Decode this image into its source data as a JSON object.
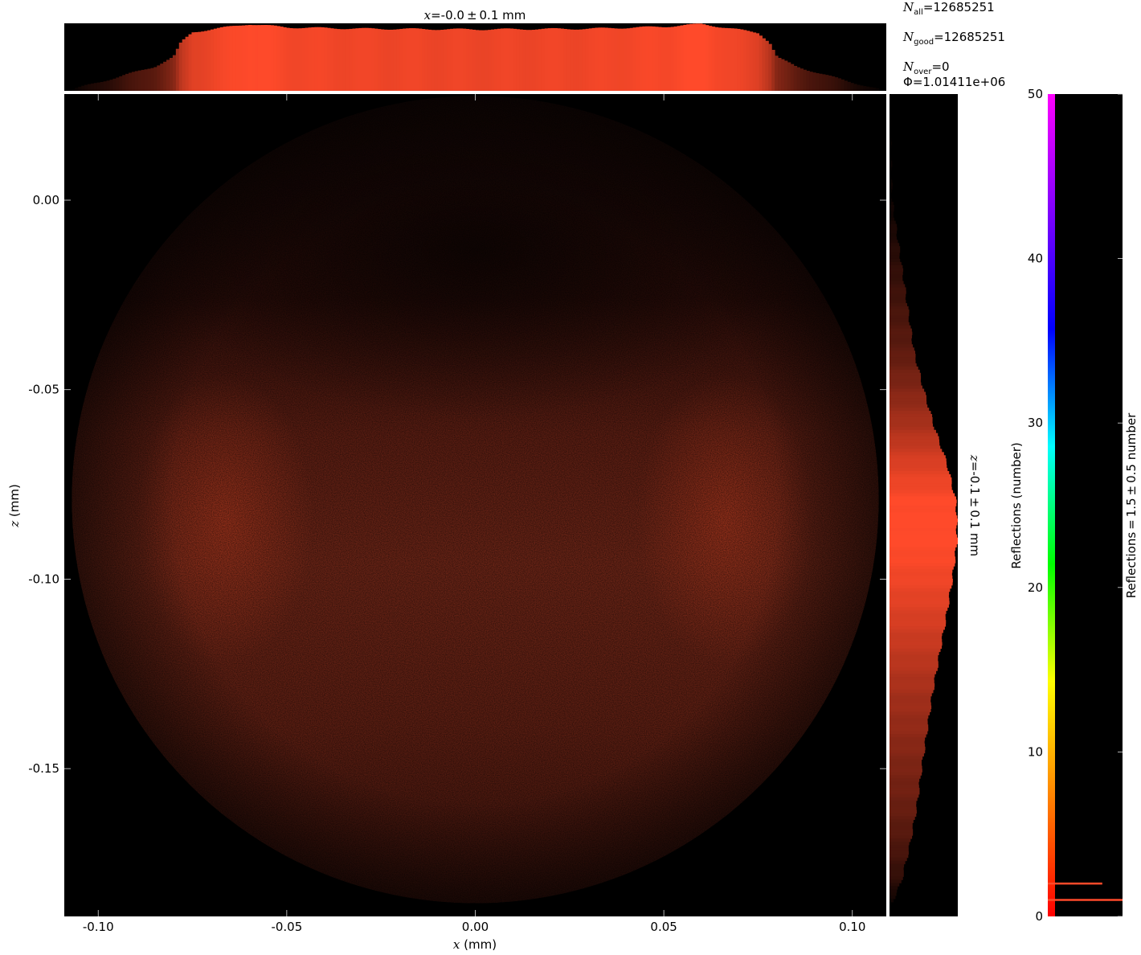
{
  "chart_data": {
    "type": "heatmap",
    "title_top": {
      "var": "x",
      "text": "=-0.0 ± 0.1 mm"
    },
    "side_label": {
      "var": "z",
      "text": "=-0.1 ± 0.1 mm"
    },
    "xlabel": {
      "var": "x",
      "text": " (mm)"
    },
    "ylabel": {
      "var": "z",
      "text": " (mm)"
    },
    "x_range": [
      -0.109,
      0.109
    ],
    "z_range": [
      -0.189,
      0.028
    ],
    "x_ticks": [
      -0.1,
      -0.05,
      0.0,
      0.05,
      0.1
    ],
    "x_tick_labels": [
      "-0.10",
      "-0.05",
      "0.00",
      "0.05",
      "0.10"
    ],
    "z_ticks": [
      0.0,
      -0.05,
      -0.1,
      -0.15
    ],
    "z_tick_labels": [
      "0.00",
      "-0.05",
      "-0.10",
      "-0.15"
    ],
    "beam": {
      "shape": "circle",
      "center_x": 0.0,
      "center_z": -0.079,
      "radius": 0.107
    },
    "stats": {
      "n_all": {
        "sym": "N",
        "sub": "all",
        "value": "=12685251"
      },
      "n_good": {
        "sym": "N",
        "sub": "good",
        "value": "=12685251"
      },
      "n_over": {
        "sym": "N",
        "sub": "over",
        "value": "=0"
      },
      "phi": {
        "sym": "Φ",
        "value": "=1.01411e+06"
      }
    },
    "x_profile": {
      "x": [
        -0.107,
        -0.095,
        -0.085,
        -0.08,
        -0.078,
        -0.075,
        -0.06,
        -0.05,
        -0.03,
        0.0,
        0.03,
        0.05,
        0.06,
        0.075,
        0.078,
        0.08,
        0.085,
        0.095,
        0.107
      ],
      "rel": [
        0.02,
        0.2,
        0.36,
        0.5,
        0.72,
        0.87,
        0.99,
        0.94,
        0.92,
        0.91,
        0.92,
        0.95,
        0.99,
        0.86,
        0.72,
        0.5,
        0.36,
        0.2,
        0.02
      ]
    },
    "z_profile": {
      "z": [
        0.028,
        0.0,
        -0.02,
        -0.04,
        -0.05,
        -0.06,
        -0.07,
        -0.08,
        -0.09,
        -0.1,
        -0.11,
        -0.12,
        -0.13,
        -0.14,
        -0.15,
        -0.16,
        -0.17,
        -0.18,
        -0.186
      ],
      "rel": [
        0.0,
        0.04,
        0.2,
        0.36,
        0.5,
        0.66,
        0.85,
        0.98,
        0.99,
        0.92,
        0.83,
        0.73,
        0.63,
        0.55,
        0.47,
        0.4,
        0.3,
        0.17,
        0.02
      ]
    },
    "colorbar": {
      "label": "Reflections (number)",
      "side_label": "Reflections = 1.5 ± 0.5 number",
      "range": [
        0,
        50
      ],
      "ticks": [
        0,
        10,
        20,
        30,
        40,
        50
      ],
      "tick_labels": [
        "0",
        "10",
        "20",
        "30",
        "40",
        "50"
      ],
      "colormap": [
        "#ff0000",
        "#ff8000",
        "#ffff00",
        "#00ff00",
        "#00ffff",
        "#0000ff",
        "#8000ff",
        "#ff00ff"
      ],
      "histogram": [
        {
          "value": 1,
          "rel": 1.0
        },
        {
          "value": 2,
          "rel": 0.7
        }
      ]
    },
    "colors": {
      "background": "#000000",
      "accent": "#ff4a2a",
      "dark": "#3a1410"
    }
  }
}
